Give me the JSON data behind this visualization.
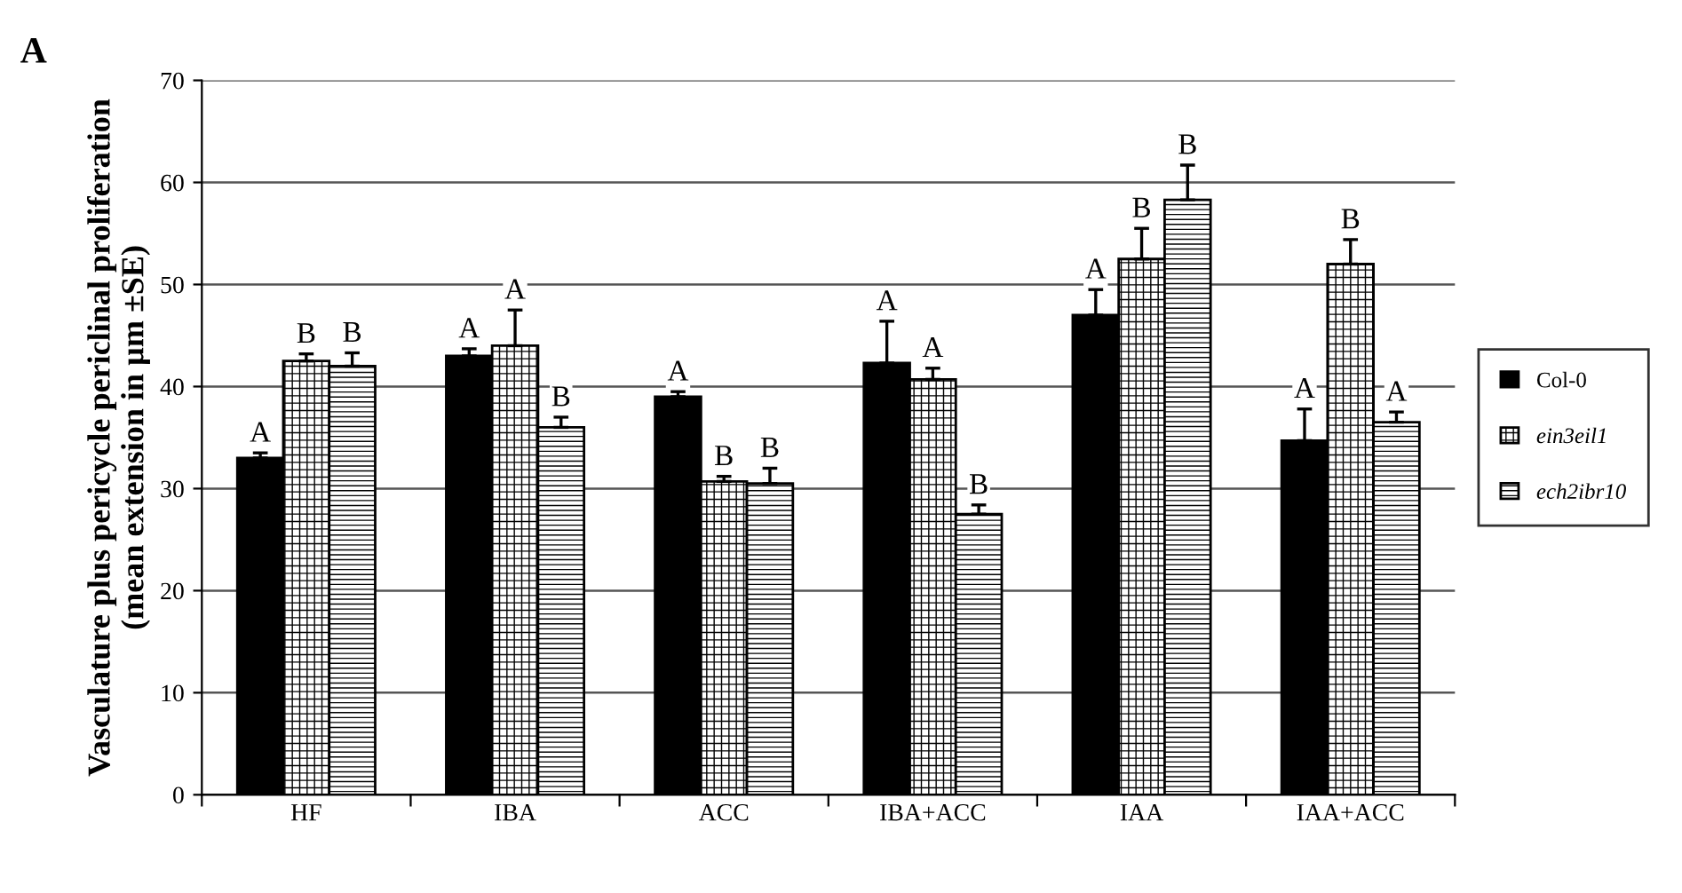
{
  "chart_data": {
    "type": "bar",
    "ylabel": "Vasculature plus pericycle periclinal proliferation\n(mean extension in µm ±SE)",
    "categories": [
      "HF",
      "IBA",
      "ACC",
      "IBA+ACC",
      "IAA",
      "IAA+ACC"
    ],
    "series": [
      {
        "name": "Col-0",
        "color": "#000000",
        "values": [
          33,
          43,
          39,
          42.3,
          47,
          34.7
        ],
        "errors": [
          0.5,
          0.7,
          0.5,
          4.1,
          2.5,
          3.1
        ],
        "value_labels": [
          "A",
          "A",
          "A",
          "A",
          "A",
          "A"
        ]
      },
      {
        "name": "ein3eil1",
        "color": "#000000",
        "values": [
          42.5,
          44,
          30.7,
          40.7,
          52.5,
          52
        ],
        "errors": [
          0.7,
          3.5,
          0.5,
          1.1,
          3,
          2.4
        ],
        "value_labels": [
          "B",
          "A",
          "B",
          "A",
          "B",
          "B"
        ]
      },
      {
        "name": "ech2ibr10",
        "color": "#000000",
        "values": [
          42,
          36,
          30.5,
          27.5,
          58.3,
          36.5
        ],
        "errors": [
          1.3,
          1,
          1.5,
          0.9,
          3.4,
          1
        ],
        "value_labels": [
          "B",
          "B",
          "B",
          "B",
          "B",
          "A"
        ]
      }
    ],
    "ylim": [
      0,
      70
    ],
    "yticks": [
      0,
      10,
      20,
      30,
      40,
      50,
      60,
      70
    ],
    "grid": "y",
    "legend": "right",
    "annotations": [
      "A"
    ]
  }
}
